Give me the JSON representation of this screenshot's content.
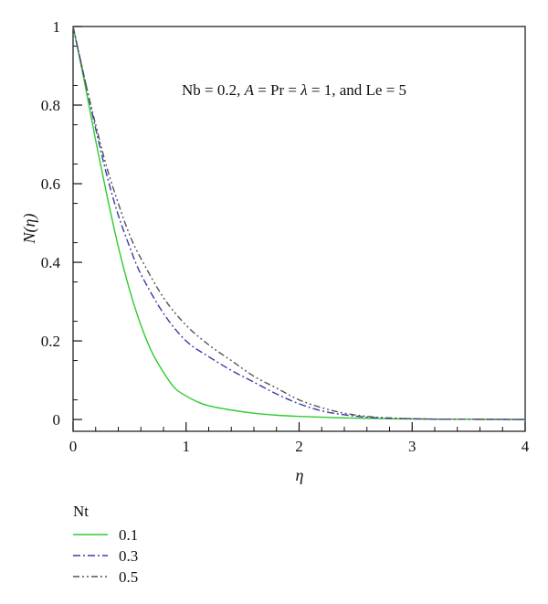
{
  "chart_data": {
    "type": "line",
    "xlabel": "η",
    "ylabel": "N(η)",
    "xlim": [
      0,
      4
    ],
    "ylim": [
      -0.03,
      1.0
    ],
    "xticks": [
      "0",
      "1",
      "2",
      "3",
      "4"
    ],
    "yticks": [
      "0",
      "0.2",
      "0.4",
      "0.6",
      "0.8",
      "1"
    ],
    "grid": false,
    "legend": {
      "title": "Nt",
      "placement": "below-left"
    },
    "annotation": {
      "parts": [
        "Nb = 0.2, ",
        "A",
        " = Pr = ",
        "λ",
        " = 1, and Le = 5"
      ]
    },
    "series": [
      {
        "name": "0.1",
        "color": "#2ecc2e",
        "dash": "solid",
        "x": [
          0,
          0.1,
          0.2,
          0.3,
          0.4,
          0.5,
          0.6,
          0.7,
          0.8,
          0.9,
          1.0,
          1.1,
          1.2,
          1.4,
          1.6,
          1.8,
          2.0,
          2.4,
          2.8,
          3.2,
          3.6,
          4.0
        ],
        "y": [
          1.0,
          0.86,
          0.71,
          0.57,
          0.44,
          0.33,
          0.24,
          0.17,
          0.12,
          0.08,
          0.06,
          0.045,
          0.035,
          0.024,
          0.016,
          0.011,
          0.008,
          0.004,
          0.002,
          0.001,
          0.0005,
          0.0
        ]
      },
      {
        "name": "0.3",
        "color": "#3a3aa8",
        "dash": "dashdot",
        "x": [
          0,
          0.1,
          0.2,
          0.3,
          0.4,
          0.5,
          0.6,
          0.8,
          1.0,
          1.2,
          1.4,
          1.6,
          1.8,
          2.0,
          2.2,
          2.4,
          2.6,
          2.8,
          3.2,
          3.6,
          4.0
        ],
        "y": [
          1.0,
          0.87,
          0.74,
          0.62,
          0.52,
          0.44,
          0.37,
          0.27,
          0.2,
          0.16,
          0.125,
          0.095,
          0.065,
          0.04,
          0.022,
          0.012,
          0.006,
          0.003,
          0.001,
          0.0005,
          0.0
        ]
      },
      {
        "name": "0.5",
        "color": "#555555",
        "dash": "dashdotdot",
        "x": [
          0,
          0.1,
          0.2,
          0.3,
          0.4,
          0.5,
          0.6,
          0.8,
          1.0,
          1.2,
          1.4,
          1.6,
          1.8,
          2.0,
          2.2,
          2.4,
          2.6,
          2.8,
          3.2,
          3.6,
          4.0
        ],
        "y": [
          1.0,
          0.87,
          0.75,
          0.64,
          0.55,
          0.47,
          0.41,
          0.31,
          0.24,
          0.19,
          0.15,
          0.11,
          0.08,
          0.05,
          0.03,
          0.016,
          0.008,
          0.004,
          0.001,
          0.0005,
          0.0
        ]
      }
    ]
  }
}
